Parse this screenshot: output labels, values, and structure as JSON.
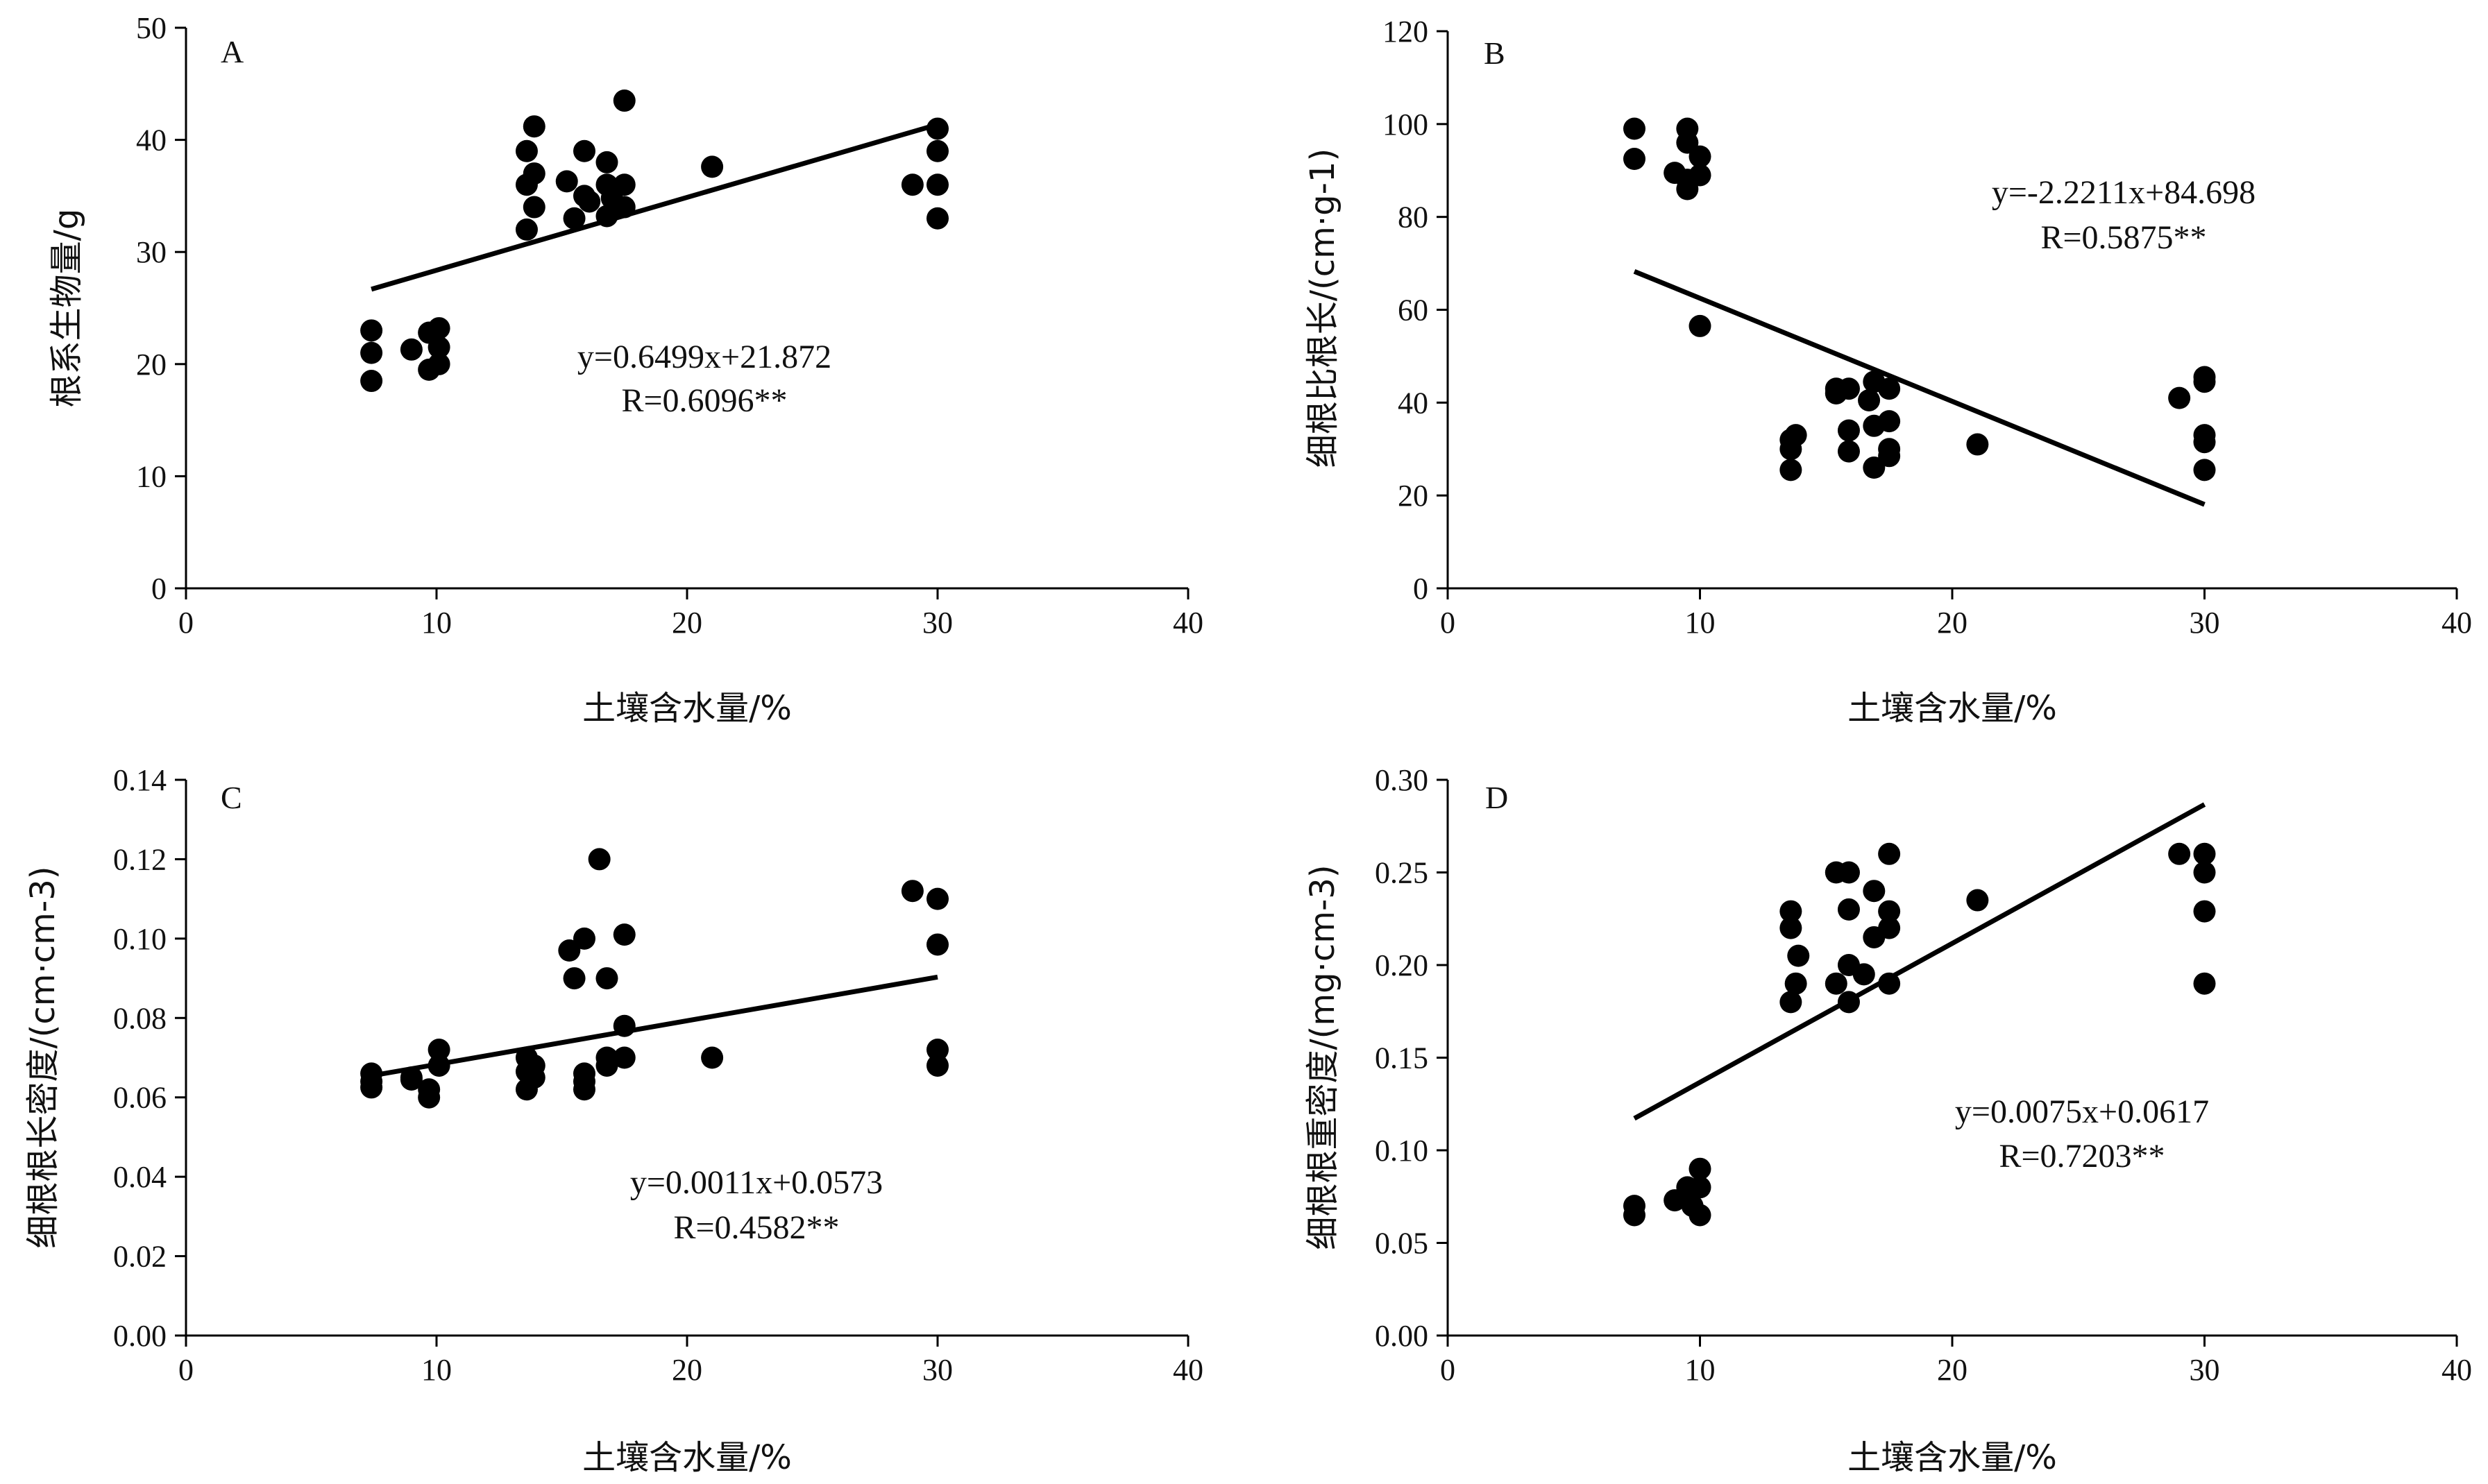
{
  "chart_data": [
    {
      "id": "A",
      "type": "scatter",
      "panel_label": "A",
      "xlabel": "土壤含水量/%",
      "ylabel": "根系生物量/g",
      "xlim": [
        0,
        40
      ],
      "ylim": [
        0,
        50
      ],
      "xticks": [
        "0",
        "10",
        "20",
        "30",
        "40"
      ],
      "yticks": [
        "0",
        "10",
        "20",
        "30",
        "40",
        "50"
      ],
      "equation": "y=0.6499x+21.872",
      "r_label": "R=0.6096**",
      "fit": {
        "slope": 0.6499,
        "intercept": 21.872,
        "x_range": [
          7.4,
          30
        ]
      },
      "points": [
        [
          7.4,
          23.0
        ],
        [
          7.4,
          21.0
        ],
        [
          7.4,
          18.5
        ],
        [
          9.0,
          21.3
        ],
        [
          9.7,
          22.8
        ],
        [
          9.7,
          19.5
        ],
        [
          10.1,
          23.2
        ],
        [
          10.1,
          21.5
        ],
        [
          10.1,
          20.0
        ],
        [
          13.6,
          39.0
        ],
        [
          13.6,
          36.0
        ],
        [
          13.6,
          32.0
        ],
        [
          13.9,
          41.2
        ],
        [
          13.9,
          37.0
        ],
        [
          13.9,
          34.0
        ],
        [
          15.2,
          36.3
        ],
        [
          15.5,
          33.0
        ],
        [
          15.9,
          39.0
        ],
        [
          15.9,
          35.0
        ],
        [
          16.1,
          34.5
        ],
        [
          16.8,
          38.0
        ],
        [
          16.8,
          36.0
        ],
        [
          16.8,
          33.2
        ],
        [
          17.0,
          34.8
        ],
        [
          17.5,
          43.5
        ],
        [
          17.5,
          36.0
        ],
        [
          17.5,
          34.0
        ],
        [
          21.0,
          37.6
        ],
        [
          29.0,
          36.0
        ],
        [
          30.0,
          41.0
        ],
        [
          30.0,
          39.0
        ],
        [
          30.0,
          36.0
        ],
        [
          30.0,
          33.0
        ]
      ]
    },
    {
      "id": "B",
      "type": "scatter",
      "panel_label": "B",
      "xlabel": "土壤含水量/%",
      "ylabel": "细根比根长/(cm·g-1)",
      "xlim": [
        0,
        40
      ],
      "ylim": [
        0,
        120
      ],
      "xticks": [
        "0",
        "10",
        "20",
        "30",
        "40"
      ],
      "yticks": [
        "0",
        "20",
        "40",
        "60",
        "80",
        "100",
        "120"
      ],
      "equation": "y=-2.2211x+84.698",
      "r_label": "R=0.5875**",
      "fit": {
        "slope": -2.2211,
        "intercept": 84.698,
        "x_range": [
          7.4,
          30
        ]
      },
      "points": [
        [
          7.4,
          99.0
        ],
        [
          7.4,
          92.5
        ],
        [
          9.0,
          89.5
        ],
        [
          9.5,
          99.0
        ],
        [
          9.5,
          96.0
        ],
        [
          9.5,
          88.0
        ],
        [
          9.5,
          86.0
        ],
        [
          10.0,
          93.0
        ],
        [
          10.0,
          89.0
        ],
        [
          10.0,
          56.5
        ],
        [
          13.6,
          32.0
        ],
        [
          13.6,
          30.0
        ],
        [
          13.6,
          25.5
        ],
        [
          13.8,
          33.0
        ],
        [
          15.4,
          43.0
        ],
        [
          15.4,
          42.0
        ],
        [
          15.9,
          43.0
        ],
        [
          15.9,
          34.0
        ],
        [
          15.9,
          29.5
        ],
        [
          16.7,
          40.5
        ],
        [
          16.9,
          44.5
        ],
        [
          16.9,
          35.0
        ],
        [
          16.9,
          26.0
        ],
        [
          17.5,
          43.0
        ],
        [
          17.5,
          36.0
        ],
        [
          17.5,
          30.0
        ],
        [
          17.5,
          28.5
        ],
        [
          21.0,
          31.0
        ],
        [
          29.0,
          41.0
        ],
        [
          30.0,
          45.5
        ],
        [
          30.0,
          44.5
        ],
        [
          30.0,
          33.0
        ],
        [
          30.0,
          31.5
        ],
        [
          30.0,
          25.5
        ]
      ]
    },
    {
      "id": "C",
      "type": "scatter",
      "panel_label": "C",
      "xlabel": "土壤含水量/%",
      "ylabel": "细根根长密度/(cm·cm-3)",
      "xlim": [
        0,
        40
      ],
      "ylim": [
        0,
        0.14
      ],
      "xticks": [
        "0",
        "10",
        "20",
        "30",
        "40"
      ],
      "yticks": [
        "0.00",
        "0.02",
        "0.04",
        "0.06",
        "0.08",
        "0.10",
        "0.12",
        "0.14"
      ],
      "equation": "y=0.0011x+0.0573",
      "r_label": "R=0.4582**",
      "fit": {
        "slope": 0.0011,
        "intercept": 0.0573,
        "x_range": [
          7.4,
          30
        ]
      },
      "points": [
        [
          7.4,
          0.066
        ],
        [
          7.4,
          0.064
        ],
        [
          7.4,
          0.0625
        ],
        [
          9.0,
          0.065
        ],
        [
          9.0,
          0.0645
        ],
        [
          9.7,
          0.062
        ],
        [
          9.7,
          0.06
        ],
        [
          10.1,
          0.072
        ],
        [
          10.1,
          0.068
        ],
        [
          13.6,
          0.07
        ],
        [
          13.6,
          0.0665
        ],
        [
          13.6,
          0.062
        ],
        [
          13.9,
          0.068
        ],
        [
          13.9,
          0.065
        ],
        [
          15.3,
          0.097
        ],
        [
          15.5,
          0.09
        ],
        [
          15.9,
          0.1
        ],
        [
          15.9,
          0.066
        ],
        [
          15.9,
          0.064
        ],
        [
          15.9,
          0.062
        ],
        [
          16.5,
          0.12
        ],
        [
          16.8,
          0.09
        ],
        [
          16.8,
          0.07
        ],
        [
          16.8,
          0.068
        ],
        [
          17.5,
          0.101
        ],
        [
          17.5,
          0.078
        ],
        [
          17.5,
          0.07
        ],
        [
          21.0,
          0.07
        ],
        [
          29.0,
          0.112
        ],
        [
          30.0,
          0.11
        ],
        [
          30.0,
          0.0985
        ],
        [
          30.0,
          0.072
        ],
        [
          30.0,
          0.068
        ]
      ]
    },
    {
      "id": "D",
      "type": "scatter",
      "panel_label": "D",
      "xlabel": "土壤含水量/%",
      "ylabel": "细根根重密度/(mg·cm-3)",
      "xlim": [
        0,
        40
      ],
      "ylim": [
        0,
        0.3
      ],
      "xticks": [
        "0",
        "10",
        "20",
        "30",
        "40"
      ],
      "yticks": [
        "0.00",
        "0.05",
        "0.10",
        "0.15",
        "0.20",
        "0.25",
        "0.30"
      ],
      "equation": "y=0.0075x+0.0617",
      "r_label": "R=0.7203**",
      "fit": {
        "slope": 0.0075,
        "intercept": 0.0617,
        "x_range": [
          7.4,
          30
        ]
      },
      "points": [
        [
          7.4,
          0.07
        ],
        [
          7.4,
          0.065
        ],
        [
          9.0,
          0.073
        ],
        [
          9.5,
          0.08
        ],
        [
          9.5,
          0.075
        ],
        [
          9.7,
          0.07
        ],
        [
          10.0,
          0.09
        ],
        [
          10.0,
          0.08
        ],
        [
          10.0,
          0.065
        ],
        [
          13.6,
          0.229
        ],
        [
          13.6,
          0.22
        ],
        [
          13.6,
          0.18
        ],
        [
          13.8,
          0.19
        ],
        [
          13.9,
          0.205
        ],
        [
          15.4,
          0.25
        ],
        [
          15.4,
          0.19
        ],
        [
          15.9,
          0.25
        ],
        [
          15.9,
          0.23
        ],
        [
          15.9,
          0.2
        ],
        [
          15.9,
          0.18
        ],
        [
          16.5,
          0.195
        ],
        [
          16.9,
          0.24
        ],
        [
          16.9,
          0.215
        ],
        [
          17.5,
          0.26
        ],
        [
          17.5,
          0.229
        ],
        [
          17.5,
          0.22
        ],
        [
          17.5,
          0.19
        ],
        [
          21.0,
          0.235
        ],
        [
          29.0,
          0.26
        ],
        [
          30.0,
          0.26
        ],
        [
          30.0,
          0.25
        ],
        [
          30.0,
          0.229
        ],
        [
          30.0,
          0.19
        ]
      ]
    }
  ]
}
